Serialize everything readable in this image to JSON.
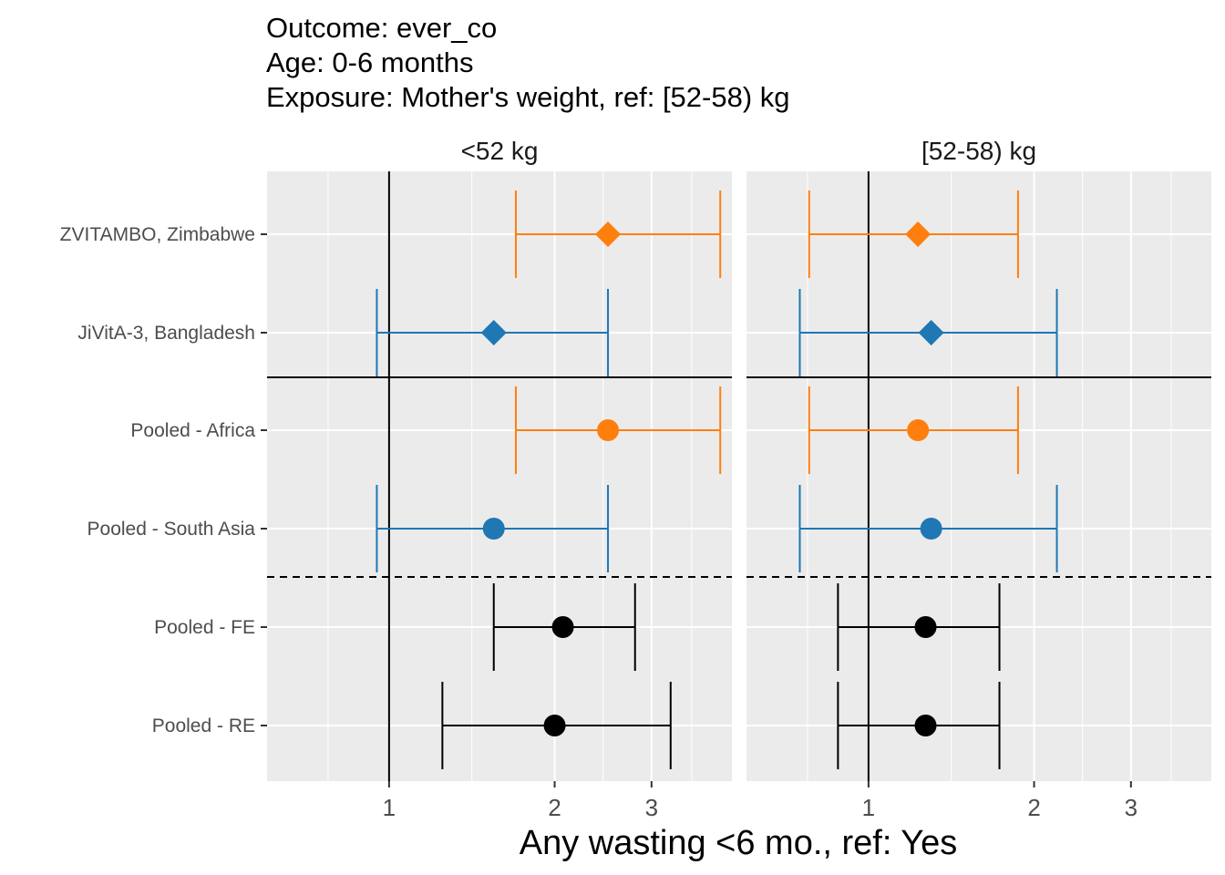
{
  "chart_data": {
    "type": "forest",
    "title_lines": [
      "Outcome: ever_co",
      "Age: 0-6 months",
      "Exposure: Mother's weight, ref: [52-58) kg"
    ],
    "xlabel": "Any wasting  <6 mo., ref: Yes",
    "x_scale": "log",
    "xlim": [
      0.6,
      4.2
    ],
    "x_ticks": [
      1,
      2,
      3
    ],
    "x_tick_labels": [
      "1",
      "2",
      "3"
    ],
    "reference_line": 1,
    "grid": true,
    "row_labels": [
      "ZVITAMBO, Zimbabwe",
      "JiVitA-3, Bangladesh",
      "Pooled - Africa",
      "Pooled - South Asia",
      "Pooled - FE",
      "Pooled - RE"
    ],
    "separators": [
      {
        "after_row": 1,
        "style": "solid"
      },
      {
        "after_row": 3,
        "style": "dashed"
      }
    ],
    "colors": {
      "africa": "#ff7f0e",
      "south_asia": "#1f77b4",
      "pooled": "#000000"
    },
    "panels": [
      {
        "label": "<52 kg",
        "rows": [
          {
            "estimate": 2.5,
            "lower": 1.7,
            "upper": 4.0,
            "color": "africa",
            "shape": "diamond"
          },
          {
            "estimate": 1.55,
            "lower": 0.95,
            "upper": 2.5,
            "color": "south_asia",
            "shape": "diamond"
          },
          {
            "estimate": 2.5,
            "lower": 1.7,
            "upper": 4.0,
            "color": "africa",
            "shape": "circle"
          },
          {
            "estimate": 1.55,
            "lower": 0.95,
            "upper": 2.5,
            "color": "south_asia",
            "shape": "circle"
          },
          {
            "estimate": 2.07,
            "lower": 1.55,
            "upper": 2.8,
            "color": "pooled",
            "shape": "circle"
          },
          {
            "estimate": 2.0,
            "lower": 1.25,
            "upper": 3.25,
            "color": "pooled",
            "shape": "circle"
          }
        ]
      },
      {
        "label": "[52-58) kg",
        "rows": [
          {
            "estimate": 1.23,
            "lower": 0.78,
            "upper": 1.87,
            "color": "africa",
            "shape": "diamond"
          },
          {
            "estimate": 1.3,
            "lower": 0.75,
            "upper": 2.2,
            "color": "south_asia",
            "shape": "diamond"
          },
          {
            "estimate": 1.23,
            "lower": 0.78,
            "upper": 1.87,
            "color": "africa",
            "shape": "circle"
          },
          {
            "estimate": 1.3,
            "lower": 0.75,
            "upper": 2.2,
            "color": "south_asia",
            "shape": "circle"
          },
          {
            "estimate": 1.27,
            "lower": 0.88,
            "upper": 1.73,
            "color": "pooled",
            "shape": "circle"
          },
          {
            "estimate": 1.27,
            "lower": 0.88,
            "upper": 1.73,
            "color": "pooled",
            "shape": "circle"
          }
        ]
      }
    ]
  }
}
